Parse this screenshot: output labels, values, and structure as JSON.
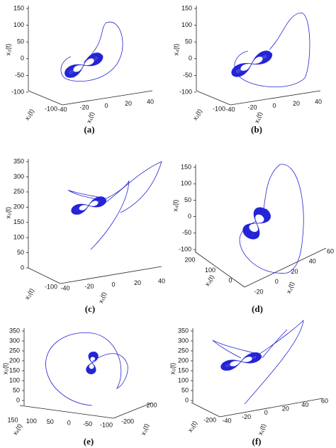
{
  "panels": [
    {
      "caption": "(a)",
      "z_label": "x₃(t)",
      "a_label": "x₂(t)",
      "b_label": "x₁(t)",
      "z_ticks": [
        150,
        100,
        50,
        0,
        -50,
        -100
      ],
      "a_ticks": [
        -100
      ],
      "b_ticks": [
        -40,
        -20,
        0,
        20,
        40
      ]
    },
    {
      "caption": "(b)",
      "z_label": "x₄(t)",
      "a_label": "x₂(t)",
      "b_label": "x₁(t)",
      "z_ticks": [
        150,
        100,
        50,
        0,
        -50,
        -100
      ],
      "a_ticks": [
        -100
      ],
      "b_ticks": [
        -40,
        -20,
        0,
        20,
        40
      ]
    },
    {
      "caption": "(c)",
      "z_label": "x₅(t)",
      "a_label": "x₂(t)",
      "b_label": "x₁(t)",
      "z_ticks": [
        350,
        300,
        250,
        200,
        150,
        100,
        50,
        0
      ],
      "a_ticks": [
        -100
      ],
      "b_ticks": [
        -40,
        -20,
        0,
        20,
        40
      ]
    },
    {
      "caption": "(d)",
      "z_label": "x₄(t)",
      "a_label": "x₃(t)",
      "b_label": "x₂(t)",
      "z_ticks": [
        150,
        100,
        50,
        0,
        -50,
        -100
      ],
      "a_ticks": [
        200,
        100,
        0
      ],
      "b_ticks": [
        -20,
        0,
        20,
        40,
        60
      ]
    },
    {
      "caption": "(e)",
      "z_label": "x₅(t)",
      "a_label": "x₆(t)",
      "b_label": "x₃(t)",
      "z_ticks": [
        350,
        300,
        250,
        200,
        150,
        100,
        50,
        0
      ],
      "a_ticks": [
        150,
        100,
        50,
        0,
        -50,
        -100
      ],
      "b_ticks": [
        -200,
        200
      ]
    },
    {
      "caption": "(f)",
      "z_label": "x₅(t)",
      "a_label": "x₃(t)",
      "b_label": "x₁(t)",
      "z_ticks": [
        350,
        300,
        250,
        200,
        150,
        100,
        50,
        0
      ],
      "a_ticks": [
        -200
      ],
      "b_ticks": [
        -40,
        -20,
        0,
        20,
        40,
        60
      ]
    }
  ]
}
